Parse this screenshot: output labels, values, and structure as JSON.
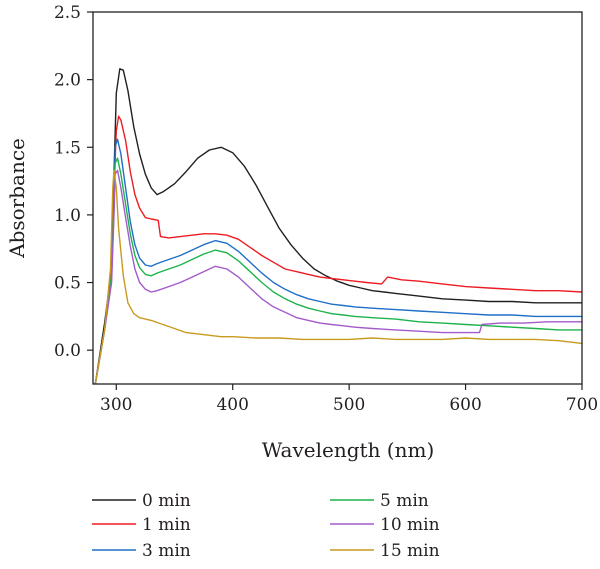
{
  "chart_data": {
    "type": "line",
    "title": "",
    "xlabel": "Wavelength (nm)",
    "ylabel": "Absorbance",
    "xlim": [
      280,
      700
    ],
    "ylim": [
      -0.25,
      2.5
    ],
    "x_ticks": [
      300,
      400,
      500,
      600,
      700
    ],
    "x_tick_labels": [
      "300",
      "400",
      "500",
      "600",
      "700"
    ],
    "y_ticks": [
      0.0,
      0.5,
      1.0,
      1.5,
      2.0,
      2.5
    ],
    "y_tick_labels": [
      "0.0",
      "0.5",
      "1.0",
      "1.5",
      "2.0",
      "2.5"
    ],
    "grid": false,
    "legend_position": "bottom",
    "series": [
      {
        "name": "0 min",
        "color": "#231f20",
        "points": [
          [
            282,
            -0.25
          ],
          [
            290,
            0.2
          ],
          [
            296,
            0.6
          ],
          [
            298,
            1.3
          ],
          [
            300,
            1.9
          ],
          [
            303,
            2.08
          ],
          [
            306,
            2.07
          ],
          [
            310,
            1.92
          ],
          [
            315,
            1.65
          ],
          [
            320,
            1.45
          ],
          [
            325,
            1.3
          ],
          [
            330,
            1.2
          ],
          [
            335,
            1.15
          ],
          [
            340,
            1.17
          ],
          [
            350,
            1.23
          ],
          [
            360,
            1.32
          ],
          [
            370,
            1.42
          ],
          [
            380,
            1.48
          ],
          [
            390,
            1.5
          ],
          [
            400,
            1.46
          ],
          [
            410,
            1.36
          ],
          [
            420,
            1.22
          ],
          [
            430,
            1.06
          ],
          [
            440,
            0.9
          ],
          [
            450,
            0.78
          ],
          [
            460,
            0.68
          ],
          [
            470,
            0.6
          ],
          [
            480,
            0.55
          ],
          [
            490,
            0.51
          ],
          [
            500,
            0.48
          ],
          [
            510,
            0.46
          ],
          [
            520,
            0.44
          ],
          [
            530,
            0.43
          ],
          [
            540,
            0.42
          ],
          [
            560,
            0.4
          ],
          [
            580,
            0.38
          ],
          [
            600,
            0.37
          ],
          [
            620,
            0.36
          ],
          [
            640,
            0.36
          ],
          [
            660,
            0.35
          ],
          [
            680,
            0.35
          ],
          [
            700,
            0.35
          ]
        ]
      },
      {
        "name": "1 min",
        "color": "#ed1c24",
        "points": [
          [
            282,
            -0.25
          ],
          [
            290,
            0.15
          ],
          [
            296,
            0.6
          ],
          [
            298,
            1.2
          ],
          [
            300,
            1.62
          ],
          [
            302,
            1.73
          ],
          [
            304,
            1.7
          ],
          [
            308,
            1.55
          ],
          [
            312,
            1.32
          ],
          [
            316,
            1.15
          ],
          [
            320,
            1.05
          ],
          [
            325,
            0.98
          ],
          [
            330,
            0.97
          ],
          [
            336,
            0.96
          ],
          [
            338,
            0.84
          ],
          [
            345,
            0.83
          ],
          [
            355,
            0.84
          ],
          [
            365,
            0.85
          ],
          [
            375,
            0.86
          ],
          [
            385,
            0.86
          ],
          [
            395,
            0.85
          ],
          [
            405,
            0.82
          ],
          [
            415,
            0.76
          ],
          [
            425,
            0.7
          ],
          [
            435,
            0.65
          ],
          [
            445,
            0.6
          ],
          [
            455,
            0.58
          ],
          [
            465,
            0.56
          ],
          [
            475,
            0.54
          ],
          [
            485,
            0.53
          ],
          [
            495,
            0.52
          ],
          [
            505,
            0.51
          ],
          [
            515,
            0.5
          ],
          [
            528,
            0.49
          ],
          [
            533,
            0.54
          ],
          [
            545,
            0.52
          ],
          [
            560,
            0.51
          ],
          [
            580,
            0.49
          ],
          [
            600,
            0.47
          ],
          [
            620,
            0.46
          ],
          [
            640,
            0.45
          ],
          [
            660,
            0.44
          ],
          [
            680,
            0.44
          ],
          [
            700,
            0.43
          ]
        ]
      },
      {
        "name": "3 min",
        "color": "#1f6fc6",
        "points": [
          [
            282,
            -0.25
          ],
          [
            290,
            0.15
          ],
          [
            296,
            0.55
          ],
          [
            298,
            1.1
          ],
          [
            299,
            1.5
          ],
          [
            301,
            1.56
          ],
          [
            304,
            1.45
          ],
          [
            308,
            1.2
          ],
          [
            312,
            0.95
          ],
          [
            316,
            0.78
          ],
          [
            320,
            0.68
          ],
          [
            325,
            0.63
          ],
          [
            330,
            0.62
          ],
          [
            335,
            0.64
          ],
          [
            345,
            0.67
          ],
          [
            355,
            0.7
          ],
          [
            365,
            0.74
          ],
          [
            375,
            0.78
          ],
          [
            385,
            0.81
          ],
          [
            395,
            0.79
          ],
          [
            405,
            0.73
          ],
          [
            415,
            0.65
          ],
          [
            425,
            0.57
          ],
          [
            435,
            0.5
          ],
          [
            445,
            0.45
          ],
          [
            455,
            0.41
          ],
          [
            465,
            0.38
          ],
          [
            475,
            0.36
          ],
          [
            485,
            0.34
          ],
          [
            495,
            0.33
          ],
          [
            505,
            0.32
          ],
          [
            520,
            0.31
          ],
          [
            540,
            0.3
          ],
          [
            560,
            0.29
          ],
          [
            580,
            0.28
          ],
          [
            600,
            0.27
          ],
          [
            620,
            0.26
          ],
          [
            640,
            0.26
          ],
          [
            660,
            0.25
          ],
          [
            680,
            0.25
          ],
          [
            700,
            0.25
          ]
        ]
      },
      {
        "name": "5 min",
        "color": "#1db34a",
        "points": [
          [
            282,
            -0.25
          ],
          [
            290,
            0.15
          ],
          [
            296,
            0.55
          ],
          [
            298,
            1.05
          ],
          [
            299,
            1.38
          ],
          [
            301,
            1.42
          ],
          [
            304,
            1.3
          ],
          [
            308,
            1.08
          ],
          [
            312,
            0.86
          ],
          [
            316,
            0.7
          ],
          [
            320,
            0.61
          ],
          [
            325,
            0.56
          ],
          [
            330,
            0.55
          ],
          [
            335,
            0.57
          ],
          [
            345,
            0.6
          ],
          [
            355,
            0.63
          ],
          [
            365,
            0.67
          ],
          [
            375,
            0.71
          ],
          [
            385,
            0.74
          ],
          [
            395,
            0.72
          ],
          [
            405,
            0.66
          ],
          [
            415,
            0.58
          ],
          [
            425,
            0.5
          ],
          [
            435,
            0.43
          ],
          [
            445,
            0.38
          ],
          [
            455,
            0.34
          ],
          [
            465,
            0.31
          ],
          [
            475,
            0.29
          ],
          [
            485,
            0.27
          ],
          [
            495,
            0.26
          ],
          [
            505,
            0.25
          ],
          [
            520,
            0.24
          ],
          [
            540,
            0.23
          ],
          [
            560,
            0.21
          ],
          [
            580,
            0.2
          ],
          [
            600,
            0.19
          ],
          [
            620,
            0.18
          ],
          [
            640,
            0.17
          ],
          [
            660,
            0.16
          ],
          [
            680,
            0.15
          ],
          [
            700,
            0.15
          ]
        ]
      },
      {
        "name": "10 min",
        "color": "#a35bc9",
        "points": [
          [
            282,
            -0.25
          ],
          [
            290,
            0.15
          ],
          [
            296,
            0.5
          ],
          [
            298,
            1.0
          ],
          [
            299,
            1.3
          ],
          [
            301,
            1.33
          ],
          [
            304,
            1.2
          ],
          [
            308,
            0.98
          ],
          [
            312,
            0.77
          ],
          [
            316,
            0.6
          ],
          [
            320,
            0.5
          ],
          [
            325,
            0.45
          ],
          [
            330,
            0.43
          ],
          [
            335,
            0.44
          ],
          [
            345,
            0.47
          ],
          [
            355,
            0.5
          ],
          [
            365,
            0.54
          ],
          [
            375,
            0.58
          ],
          [
            385,
            0.62
          ],
          [
            395,
            0.6
          ],
          [
            405,
            0.54
          ],
          [
            415,
            0.46
          ],
          [
            425,
            0.38
          ],
          [
            435,
            0.32
          ],
          [
            445,
            0.28
          ],
          [
            455,
            0.24
          ],
          [
            465,
            0.22
          ],
          [
            475,
            0.2
          ],
          [
            485,
            0.19
          ],
          [
            495,
            0.18
          ],
          [
            505,
            0.17
          ],
          [
            520,
            0.16
          ],
          [
            540,
            0.15
          ],
          [
            560,
            0.14
          ],
          [
            580,
            0.13
          ],
          [
            600,
            0.13
          ],
          [
            612,
            0.13
          ],
          [
            614,
            0.19
          ],
          [
            630,
            0.2
          ],
          [
            650,
            0.2
          ],
          [
            670,
            0.21
          ],
          [
            690,
            0.21
          ],
          [
            700,
            0.21
          ]
        ]
      },
      {
        "name": "15 min",
        "color": "#c89a1e",
        "points": [
          [
            282,
            -0.25
          ],
          [
            290,
            0.15
          ],
          [
            295,
            0.6
          ],
          [
            297,
            1.2
          ],
          [
            298,
            1.33
          ],
          [
            300,
            1.2
          ],
          [
            302,
            0.9
          ],
          [
            306,
            0.55
          ],
          [
            310,
            0.35
          ],
          [
            315,
            0.27
          ],
          [
            320,
            0.24
          ],
          [
            330,
            0.22
          ],
          [
            340,
            0.19
          ],
          [
            350,
            0.16
          ],
          [
            360,
            0.13
          ],
          [
            370,
            0.12
          ],
          [
            380,
            0.11
          ],
          [
            390,
            0.1
          ],
          [
            400,
            0.1
          ],
          [
            420,
            0.09
          ],
          [
            440,
            0.09
          ],
          [
            460,
            0.08
          ],
          [
            480,
            0.08
          ],
          [
            500,
            0.08
          ],
          [
            520,
            0.09
          ],
          [
            540,
            0.08
          ],
          [
            560,
            0.08
          ],
          [
            580,
            0.08
          ],
          [
            600,
            0.09
          ],
          [
            620,
            0.08
          ],
          [
            640,
            0.08
          ],
          [
            660,
            0.08
          ],
          [
            680,
            0.07
          ],
          [
            700,
            0.05
          ]
        ]
      }
    ]
  }
}
